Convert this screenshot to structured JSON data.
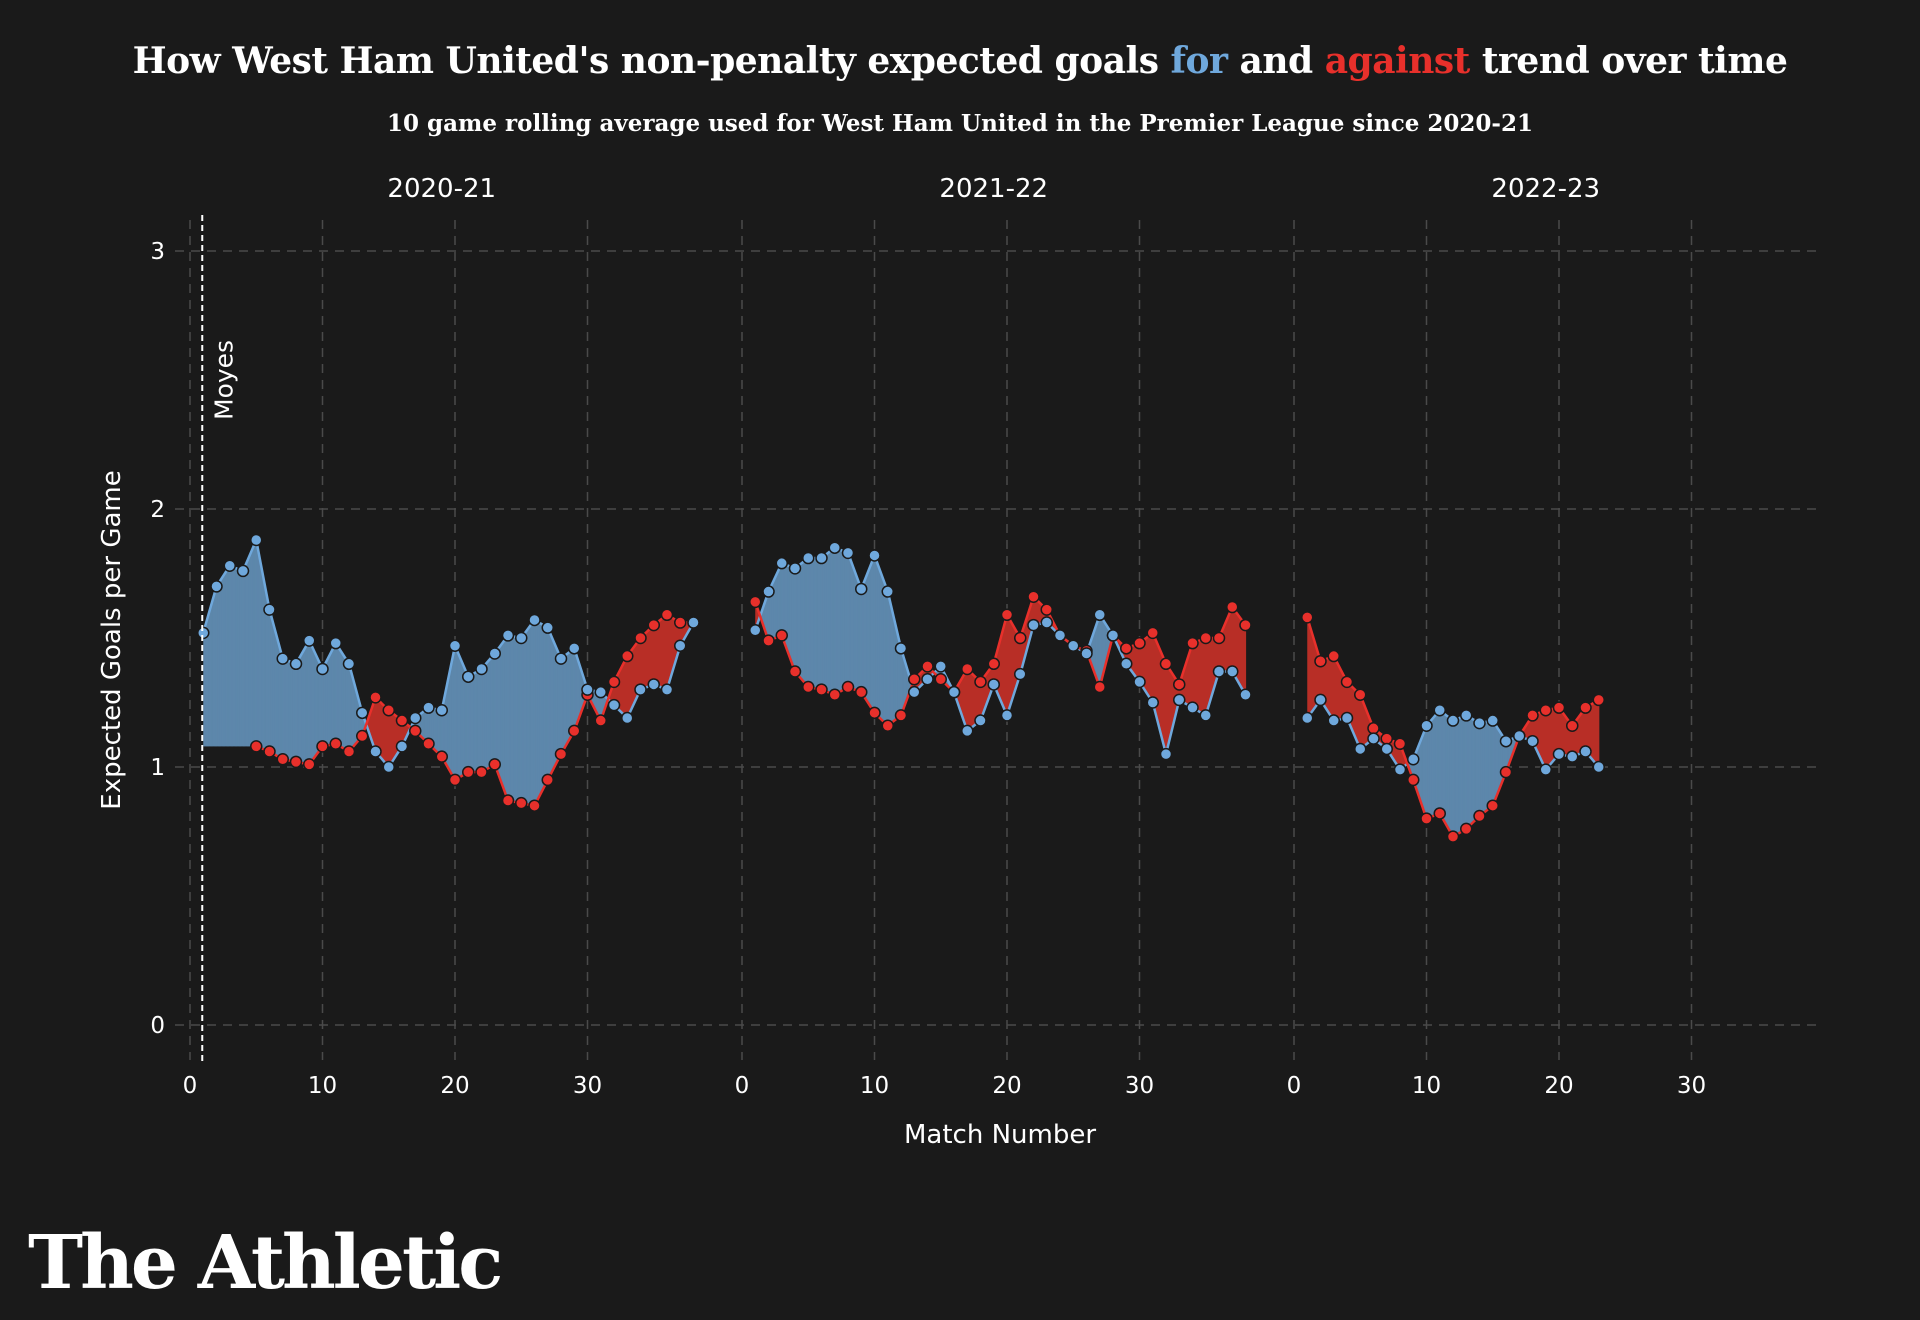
{
  "header": {
    "title_prefix": "How West Ham United's non-penalty expected goals ",
    "title_for": "for",
    "title_and": " and ",
    "title_against": "against",
    "title_suffix": " trend over time",
    "subtitle": "10 game rolling average used for West Ham United in the Premier League since 2020-21"
  },
  "brand": "The Athletic",
  "colors": {
    "background": "#1a1a1a",
    "for": "#6fa8dc",
    "against": "#e8302b",
    "for_fill": "#5d87ab",
    "against_fill": "#b82e26",
    "grid": "#4a4a4a"
  },
  "chart_data": {
    "type": "line",
    "xlabel": "Match Number",
    "ylabel": "Expected Goals per Game",
    "ylim": [
      0,
      3
    ],
    "yticks": [
      0,
      1,
      2,
      3
    ],
    "xlim": [
      0,
      38
    ],
    "xticks": [
      0,
      10,
      20,
      30
    ],
    "grid": true,
    "annotation": {
      "label": "Moyes",
      "match": 1,
      "panel": "2020-21"
    },
    "panels": [
      {
        "season": "2020-21",
        "x_for": [
          1,
          2,
          3,
          4,
          5,
          6,
          7,
          8,
          9,
          10,
          11,
          12,
          13,
          14,
          15,
          16,
          17,
          18,
          19,
          20,
          21,
          22,
          23,
          24,
          25,
          26,
          27,
          28,
          29,
          30,
          31,
          32,
          33,
          34,
          35,
          36,
          37,
          38
        ],
        "for": [
          1.52,
          1.7,
          1.78,
          1.76,
          1.88,
          1.61,
          1.42,
          1.4,
          1.49,
          1.38,
          1.48,
          1.4,
          1.21,
          1.06,
          1.0,
          1.08,
          1.19,
          1.23,
          1.22,
          1.47,
          1.35,
          1.38,
          1.44,
          1.51,
          1.5,
          1.57,
          1.54,
          1.42,
          1.46,
          1.3,
          1.29,
          1.24,
          1.19,
          1.3,
          1.32,
          1.3,
          1.47,
          1.56
        ],
        "x_against": [
          5,
          6,
          7,
          8,
          9,
          10,
          11,
          12,
          13,
          14,
          15,
          16,
          17,
          18,
          19,
          20,
          21,
          22,
          23,
          24,
          25,
          26,
          27,
          28,
          29,
          30,
          31,
          32,
          33,
          34,
          35,
          36,
          37,
          38
        ],
        "against": [
          1.08,
          1.06,
          1.03,
          1.02,
          1.01,
          1.08,
          1.09,
          1.06,
          1.12,
          1.27,
          1.22,
          1.18,
          1.14,
          1.09,
          1.04,
          0.95,
          0.98,
          0.98,
          1.01,
          0.87,
          0.86,
          0.85,
          0.95,
          1.05,
          1.14,
          1.28,
          1.18,
          1.33,
          1.43,
          1.5,
          1.55,
          1.59,
          1.56,
          1.56
        ]
      },
      {
        "season": "2021-22",
        "x_for": [
          1,
          2,
          3,
          4,
          5,
          6,
          7,
          8,
          9,
          10,
          11,
          12,
          13,
          14,
          15,
          16,
          17,
          18,
          19,
          20,
          21,
          22,
          23,
          24,
          25,
          26,
          27,
          28,
          29,
          30,
          31,
          32,
          33,
          34,
          35,
          36,
          37,
          38
        ],
        "for": [
          1.53,
          1.68,
          1.79,
          1.77,
          1.81,
          1.81,
          1.85,
          1.83,
          1.69,
          1.82,
          1.68,
          1.46,
          1.29,
          1.34,
          1.39,
          1.29,
          1.14,
          1.18,
          1.32,
          1.2,
          1.36,
          1.55,
          1.56,
          1.51,
          1.47,
          1.44,
          1.59,
          1.51,
          1.4,
          1.33,
          1.25,
          1.05,
          1.26,
          1.23,
          1.2,
          1.37,
          1.37,
          1.28
        ],
        "x_against": [
          1,
          2,
          3,
          4,
          5,
          6,
          7,
          8,
          9,
          10,
          11,
          12,
          13,
          14,
          15,
          16,
          17,
          18,
          19,
          20,
          21,
          22,
          23,
          24,
          25,
          26,
          27,
          28,
          29,
          30,
          31,
          32,
          33,
          34,
          35,
          36,
          37,
          38
        ],
        "against": [
          1.64,
          1.49,
          1.51,
          1.37,
          1.31,
          1.3,
          1.28,
          1.31,
          1.29,
          1.21,
          1.16,
          1.2,
          1.34,
          1.39,
          1.34,
          1.29,
          1.38,
          1.33,
          1.4,
          1.59,
          1.5,
          1.66,
          1.61,
          1.51,
          1.47,
          1.45,
          1.31,
          1.51,
          1.46,
          1.48,
          1.52,
          1.4,
          1.32,
          1.48,
          1.5,
          1.5,
          1.62,
          1.55
        ]
      },
      {
        "season": "2022-23",
        "x_for": [
          1,
          2,
          3,
          4,
          5,
          6,
          7,
          8,
          9,
          10,
          11,
          12,
          13,
          14,
          15,
          16,
          17,
          18,
          19,
          20,
          21,
          22,
          23
        ],
        "for": [
          1.19,
          1.26,
          1.18,
          1.19,
          1.07,
          1.11,
          1.07,
          0.99,
          1.03,
          1.16,
          1.22,
          1.18,
          1.2,
          1.17,
          1.18,
          1.1,
          1.12,
          1.1,
          0.99,
          1.05,
          1.04,
          1.06,
          1.0
        ],
        "x_against": [
          1,
          2,
          3,
          4,
          5,
          6,
          7,
          8,
          9,
          10,
          11,
          12,
          13,
          14,
          15,
          16,
          17,
          18,
          19,
          20,
          21,
          22,
          23
        ],
        "against": [
          1.58,
          1.41,
          1.43,
          1.33,
          1.28,
          1.15,
          1.11,
          1.09,
          0.95,
          0.8,
          0.82,
          0.73,
          0.76,
          0.81,
          0.85,
          0.98,
          1.12,
          1.2,
          1.22,
          1.23,
          1.16,
          1.23,
          1.26
        ]
      }
    ]
  }
}
